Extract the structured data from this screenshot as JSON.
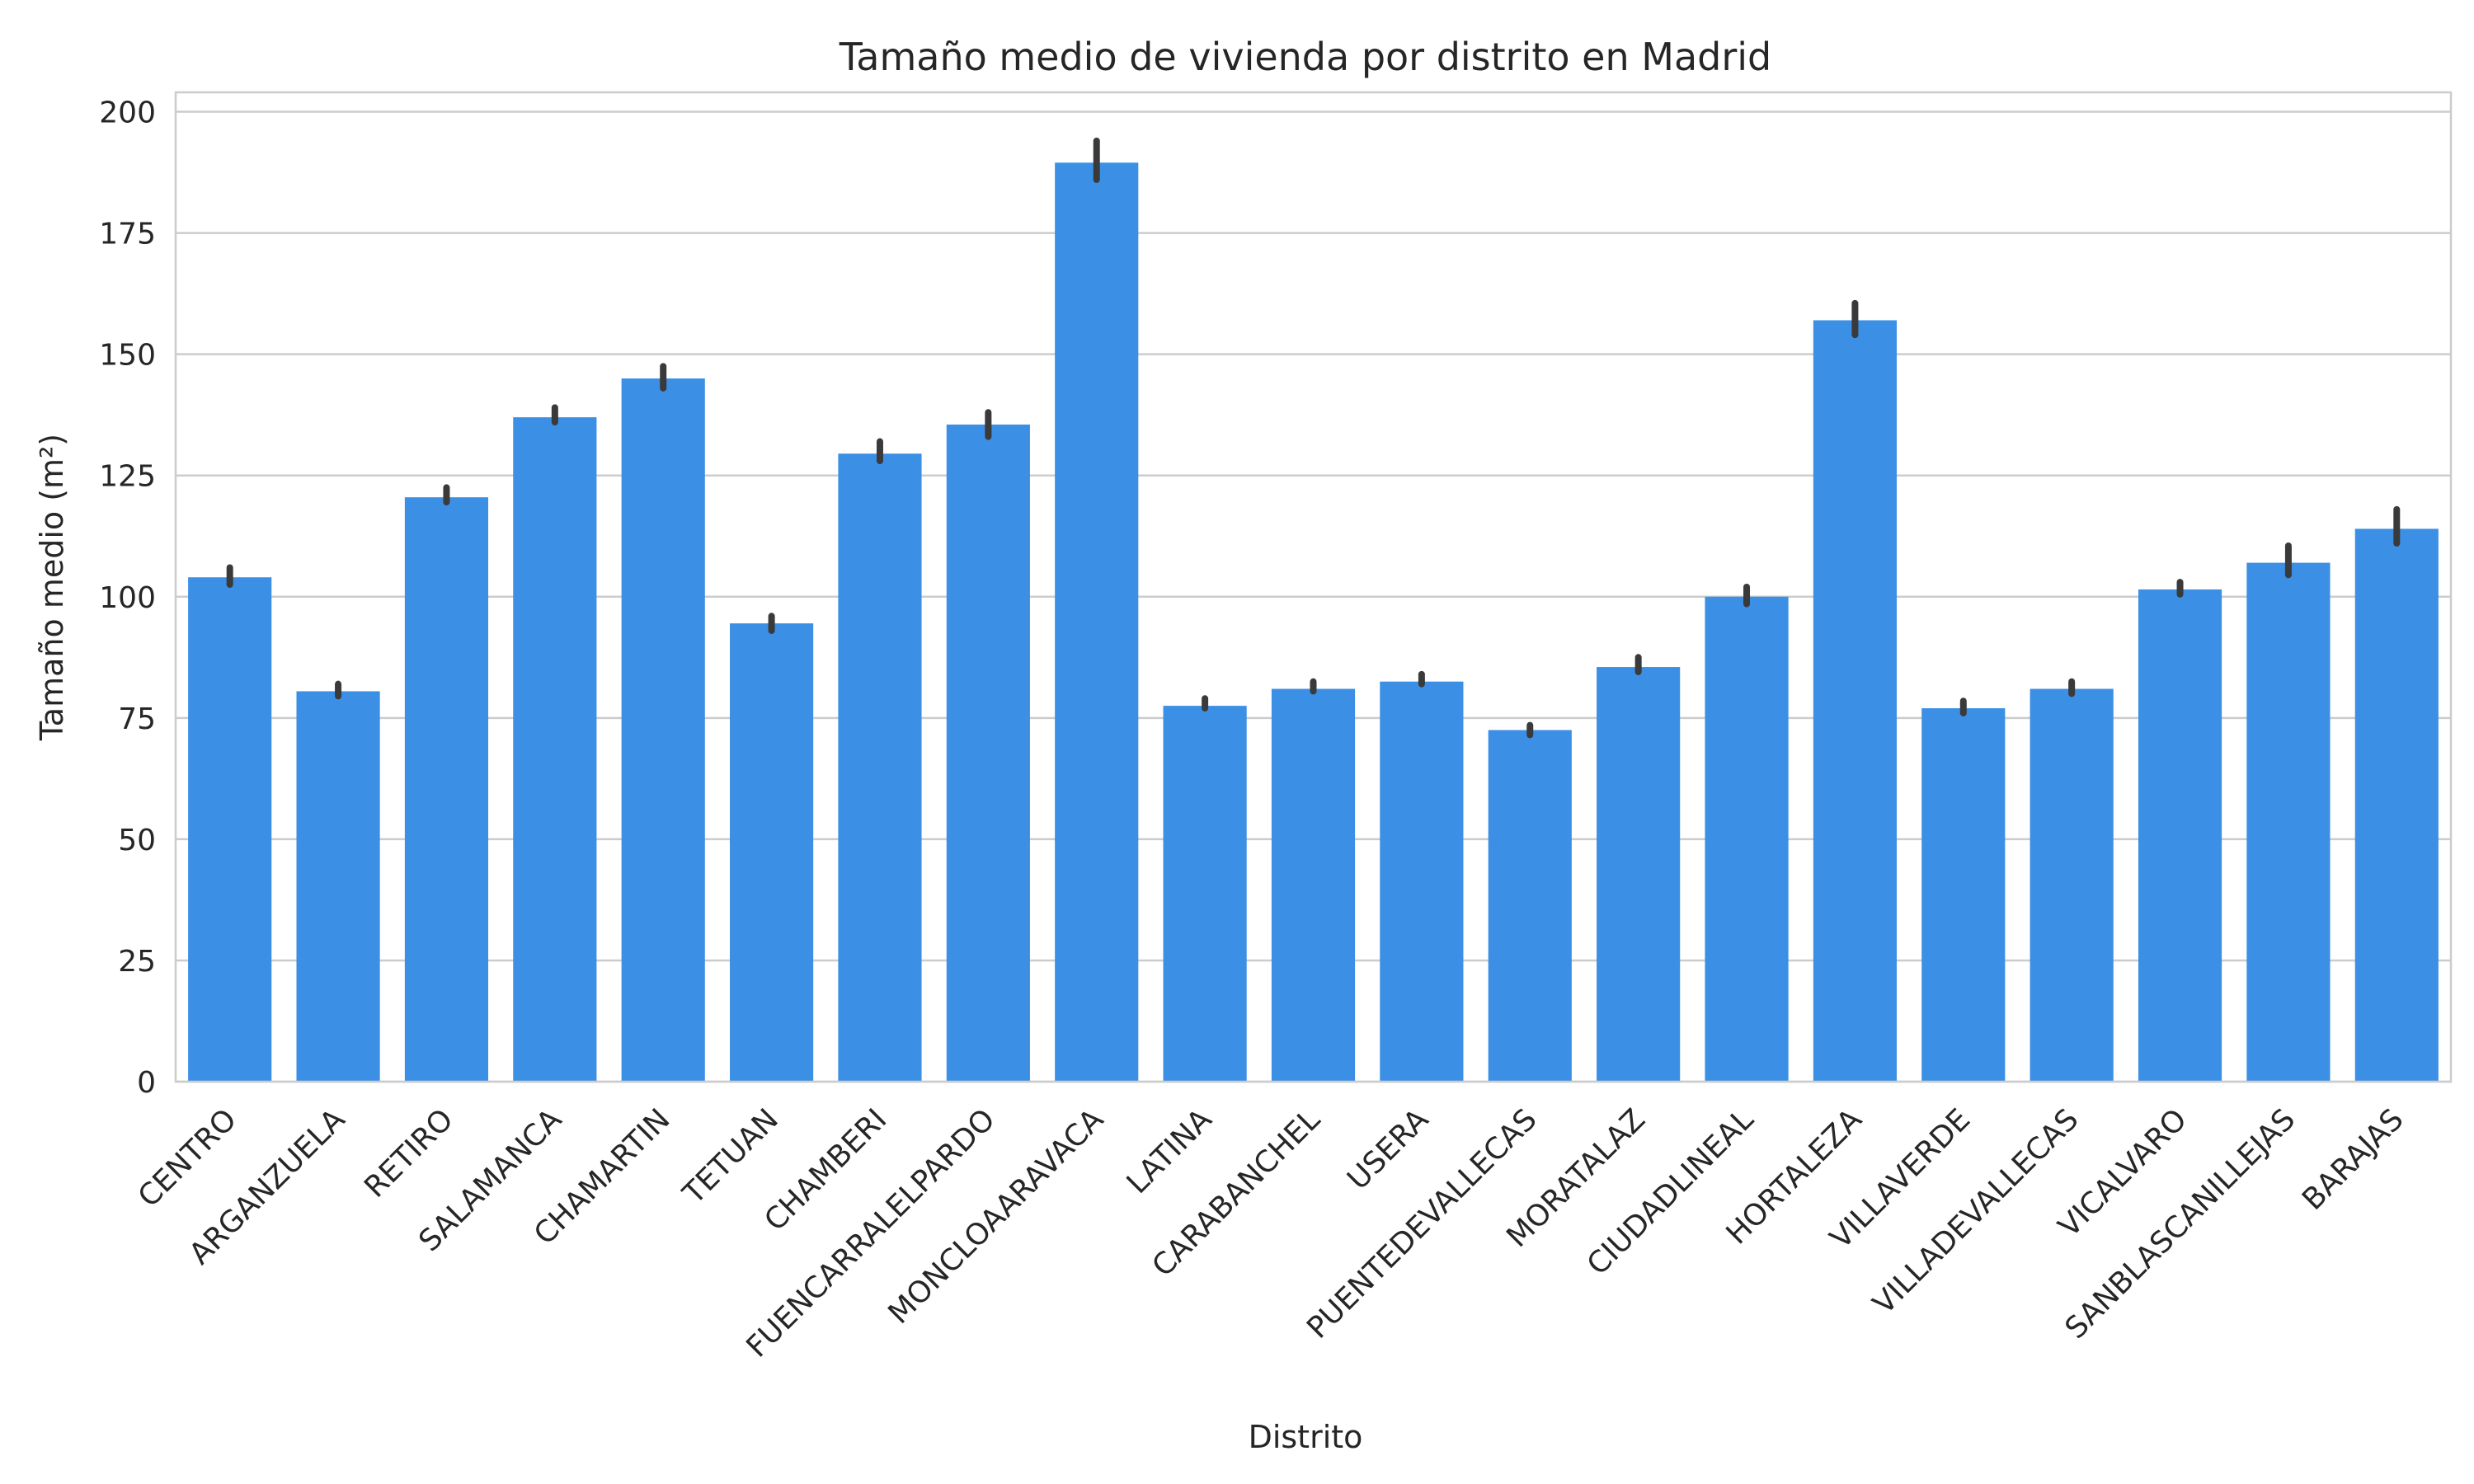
{
  "chart_data": {
    "type": "bar",
    "title": "Tamaño medio de vivienda por distrito en Madrid",
    "xlabel": "Distrito",
    "ylabel": "Tamaño medio (m²)",
    "ylim": [
      0,
      204
    ],
    "yticks": [
      0,
      25,
      50,
      75,
      100,
      125,
      150,
      175,
      200
    ],
    "grid": "horizontal",
    "bar_color": "#3b8fe5",
    "error_color": "#3a3a3a",
    "categories": [
      "CENTRO",
      "ARGANZUELA",
      "RETIRO",
      "SALAMANCA",
      "CHAMARTIN",
      "TETUAN",
      "CHAMBERI",
      "FUENCARRALELPARDO",
      "MONCLOAARAVACA",
      "LATINA",
      "CARABANCHEL",
      "USERA",
      "PUENTEDEVALLECAS",
      "MORATALAZ",
      "CIUDADLINEAL",
      "HORTALEZA",
      "VILLAVERDE",
      "VILLADEVALLECAS",
      "VICALVARO",
      "SANBLASCANILLEJAS",
      "BARAJAS"
    ],
    "values": [
      104,
      80.5,
      120.5,
      137,
      145,
      94.5,
      129.5,
      135.5,
      189.5,
      77.5,
      81,
      82.5,
      72.5,
      85.5,
      100,
      157,
      77,
      81,
      101.5,
      107,
      114
    ],
    "error_low": [
      102.5,
      79.5,
      119.5,
      136,
      143,
      93,
      128,
      133,
      186,
      77,
      80.5,
      82,
      71.5,
      84.5,
      98.5,
      154,
      76,
      80,
      100.5,
      104.5,
      111
    ],
    "error_high": [
      106,
      82,
      122.5,
      139,
      147.5,
      96,
      132,
      138,
      194,
      79,
      82.5,
      84,
      73.5,
      87.5,
      102,
      160.5,
      78.5,
      82.5,
      103,
      110.5,
      118
    ]
  }
}
